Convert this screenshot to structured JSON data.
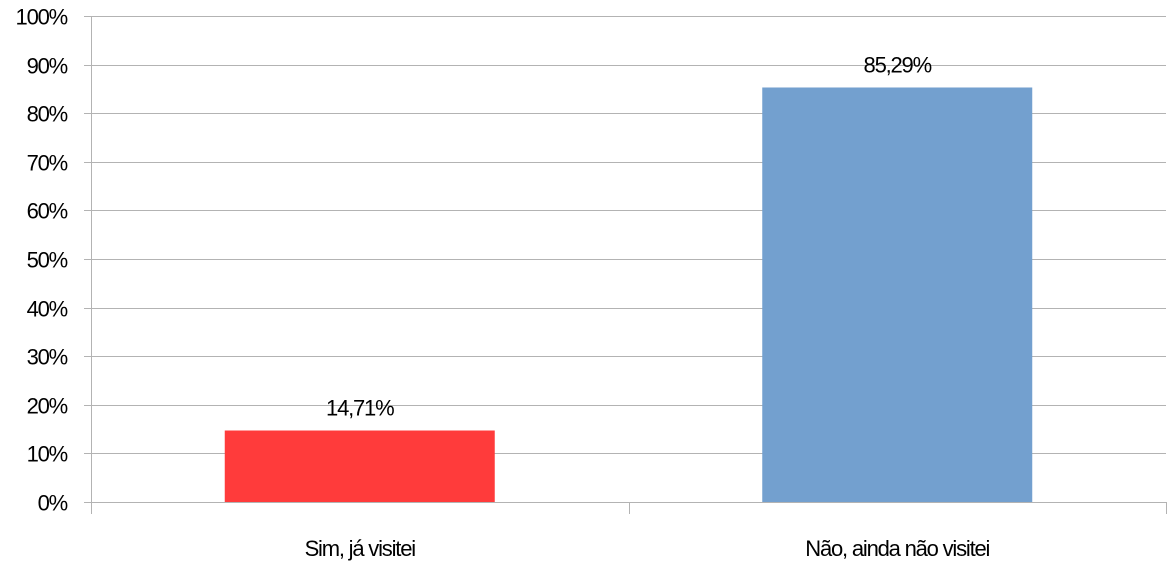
{
  "chart_data": {
    "type": "bar",
    "title": "",
    "xlabel": "",
    "ylabel": "",
    "categories": [
      "Sim, já visitei",
      "Não, ainda não visitei"
    ],
    "values": [
      14.71,
      85.29
    ],
    "data_labels": [
      "14,71%",
      "85,29%"
    ],
    "bar_colors": [
      "#ff3b3b",
      "#73a0cf"
    ],
    "ylim": [
      0,
      100
    ],
    "yticks": [
      0,
      10,
      20,
      30,
      40,
      50,
      60,
      70,
      80,
      90,
      100
    ],
    "ytick_labels": [
      "0%",
      "10%",
      "20%",
      "30%",
      "40%",
      "50%",
      "60%",
      "70%",
      "80%",
      "90%",
      "100%"
    ],
    "grid": true,
    "gridline_color": "#b3b3b3",
    "axis_color": "#b3b3b3",
    "legend": "none"
  }
}
